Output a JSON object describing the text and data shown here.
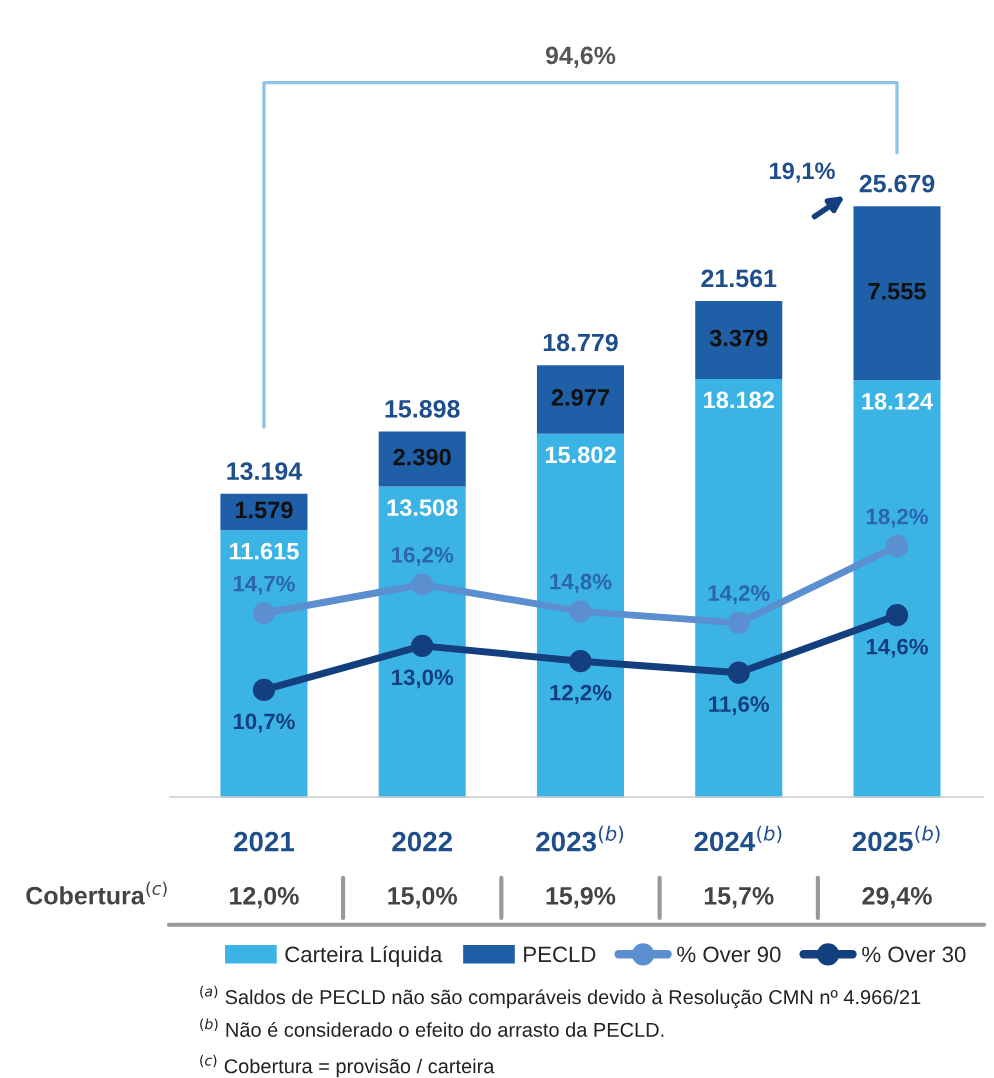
{
  "chart_data": [
    {
      "type": "bar",
      "stacked": true,
      "categories": [
        "2021",
        "2022",
        "2023$^{(b)}$",
        "2024$^{(b)}$",
        "2025$^{(b)}$"
      ],
      "series": [
        {
          "name": "Carteira Líquida",
          "color": "#3bb4e5",
          "values": [
            11615,
            13508,
            15802,
            18182,
            18124
          ],
          "value_labels": [
            "11.615",
            "13.508",
            "15.802",
            "18.182",
            "18.124"
          ]
        },
        {
          "name": "PECLD",
          "color": "#1f5fa8",
          "values": [
            1579,
            2390,
            2977,
            3379,
            7555
          ],
          "value_labels": [
            "1.579",
            "2.390",
            "2.977",
            "3.379",
            "7.555"
          ]
        }
      ],
      "totals": [
        "13.194",
        "15.898",
        "18.779",
        "21.561",
        "25.679"
      ],
      "tick_labels": "x",
      "legend": "bottom",
      "annotations": [
        "94,6%",
        "19,1%",
        "Cobertura$^{(c)}$",
        "12,0%",
        "15,0%",
        "15,9%",
        "15,7%",
        "29,4%",
        "$^{(a)}$ Saldos de PECLD não são comparáveis devido à Resolução CMN nº 4.966/21",
        "$^{(b)}$ Não é considerado o efeito do arrasto da PECLD.",
        "$^{(c)}$ Cobertura = provisão / carteira"
      ]
    },
    {
      "type": "line",
      "series": [
        {
          "name": "% Over 90",
          "color": "#5b8fd0",
          "values": [
            14.7,
            16.2,
            14.8,
            14.2,
            18.2
          ],
          "value_labels": [
            "14,7%",
            "16,2%",
            "14,8%",
            "14,2%",
            "18,2%"
          ]
        },
        {
          "name": "% Over 30",
          "color": "#143f7f",
          "values": [
            10.7,
            13.0,
            12.2,
            11.6,
            14.6
          ],
          "value_labels": [
            "10,7%",
            "13,0%",
            "12,2%",
            "11,6%",
            "14,6%"
          ]
        }
      ],
      "marker": "circle",
      "legend": "bottom"
    }
  ]
}
